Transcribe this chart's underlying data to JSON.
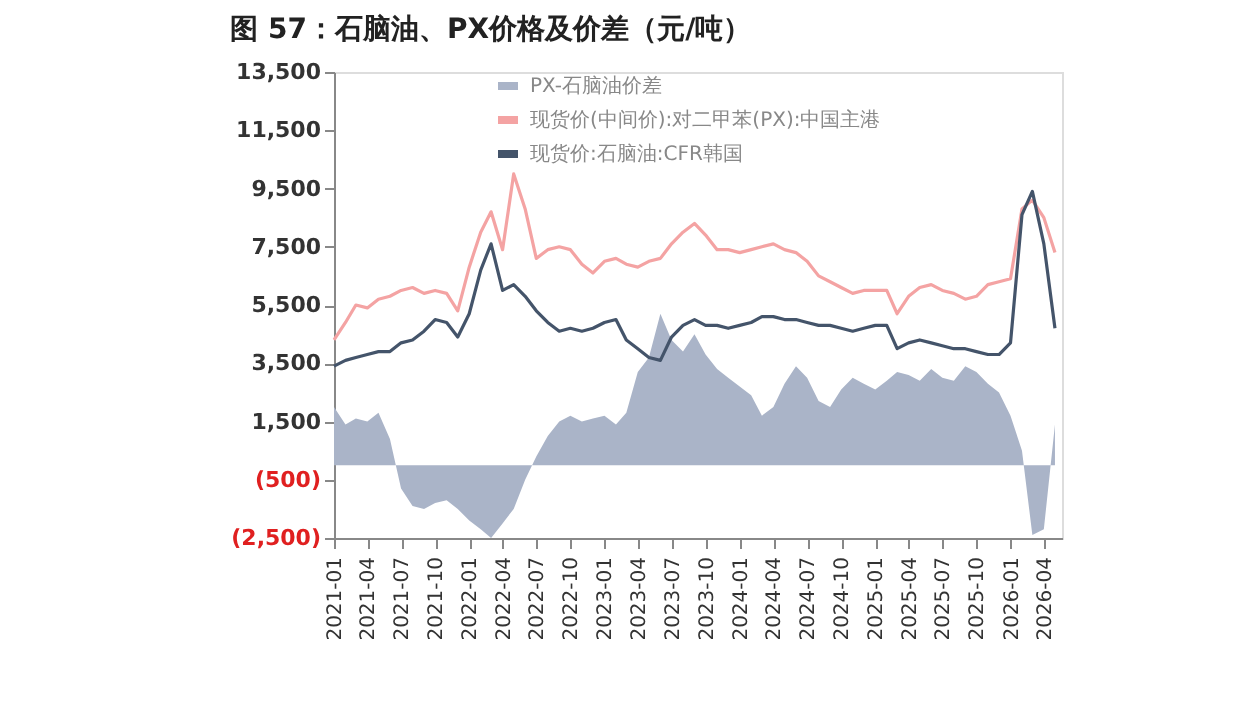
{
  "chart_data": {
    "type": "area",
    "title": "图 57：石脑油、PX价格及价差（元/吨）",
    "x": [
      "2021-01",
      "2021-02",
      "2021-03",
      "2021-04",
      "2021-05",
      "2021-06",
      "2021-07",
      "2021-08",
      "2021-09",
      "2021-10",
      "2021-11",
      "2021-12",
      "2022-01",
      "2022-02",
      "2022-03",
      "2022-04",
      "2022-05",
      "2022-06",
      "2022-07",
      "2022-08",
      "2022-09",
      "2022-10",
      "2022-11",
      "2022-12",
      "2023-01",
      "2023-02",
      "2023-03",
      "2023-04",
      "2023-05",
      "2023-06",
      "2023-07",
      "2023-08",
      "2023-09",
      "2023-10",
      "2023-11",
      "2023-12",
      "2024-01",
      "2024-02",
      "2024-03",
      "2024-04",
      "2024-05",
      "2024-06",
      "2024-07",
      "2024-08",
      "2024-09",
      "2024-10",
      "2024-11",
      "2024-12",
      "2025-01",
      "2025-02",
      "2025-03",
      "2025-04",
      "2025-05",
      "2025-06",
      "2025-07",
      "2025-08",
      "2025-09",
      "2025-10",
      "2025-11",
      "2025-12",
      "2026-01",
      "2026-02",
      "2026-03",
      "2026-04",
      "2026-05"
    ],
    "series": [
      {
        "name": "PX-石脑油价差",
        "color": "#aab4c8",
        "values": [
          2000,
          1400,
          1600,
          1500,
          1800,
          900,
          -800,
          -1400,
          -1500,
          -1300,
          -1200,
          -1500,
          -1900,
          -2200,
          -2500,
          -2000,
          -1500,
          -500,
          300,
          1000,
          1500,
          1700,
          1500,
          1600,
          1700,
          1400,
          1800,
          3200,
          3700,
          5200,
          4300,
          3900,
          4500,
          3800,
          3300,
          3000,
          2700,
          2400,
          1700,
          2000,
          2800,
          3400,
          3000,
          2200,
          2000,
          2600,
          3000,
          2800,
          2600,
          2900,
          3200,
          3100,
          2900,
          3300,
          3000,
          2900,
          3400,
          3200,
          2800,
          2500,
          1700,
          500,
          -2400,
          -2200,
          1400
        ]
      },
      {
        "name": "现货价(中间价):对二甲苯(PX):中国主港",
        "type": "line",
        "color": "#f4a3a3",
        "values": [
          4300,
          4900,
          5500,
          5400,
          5700,
          5800,
          6000,
          6100,
          5900,
          6000,
          5900,
          5300,
          6800,
          8000,
          8700,
          7400,
          10000,
          8800,
          7100,
          7400,
          7500,
          7400,
          6900,
          6600,
          7000,
          7100,
          6900,
          6800,
          7000,
          7100,
          7600,
          8000,
          8300,
          7900,
          7400,
          7400,
          7300,
          7400,
          7500,
          7600,
          7400,
          7300,
          7000,
          6500,
          6300,
          6100,
          5900,
          6000,
          6000,
          6000,
          5200,
          5800,
          6100,
          6200,
          6000,
          5900,
          5700,
          5800,
          6200,
          6300,
          6400,
          8800,
          9100,
          8500,
          7300
        ]
      },
      {
        "name": "现货价:石脑油:CFR韩国",
        "type": "line",
        "color": "#44546a",
        "values": [
          3400,
          3600,
          3700,
          3800,
          3900,
          3900,
          4200,
          4300,
          4600,
          5000,
          4900,
          4400,
          5200,
          6700,
          7600,
          6000,
          6200,
          5800,
          5300,
          4900,
          4600,
          4700,
          4600,
          4700,
          4900,
          5000,
          4300,
          4000,
          3700,
          3600,
          4400,
          4800,
          5000,
          4800,
          4800,
          4700,
          4800,
          4900,
          5100,
          5100,
          5000,
          5000,
          4900,
          4800,
          4800,
          4700,
          4600,
          4700,
          4800,
          4800,
          4000,
          4200,
          4300,
          4200,
          4100,
          4000,
          4000,
          3900,
          3800,
          3800,
          4200,
          8600,
          9400,
          7600,
          4700
        ]
      }
    ],
    "xlim": [
      "2021-01",
      "2026-05-20"
    ],
    "xticks": [
      "2021-01",
      "2021-04",
      "2021-07",
      "2021-10",
      "2022-01",
      "2022-04",
      "2022-07",
      "2022-10",
      "2023-01",
      "2023-04",
      "2023-07",
      "2023-10",
      "2024-01",
      "2024-04",
      "2024-07",
      "2024-10",
      "2025-01",
      "2025-04",
      "2025-07",
      "2025-10",
      "2026-01",
      "2026-04"
    ],
    "ylim": [
      -2500,
      13500
    ],
    "yticks": [
      {
        "value": -2500,
        "label": "(2,500)"
      },
      {
        "value": -500,
        "label": "(500)"
      },
      {
        "value": 1500,
        "label": "1,500"
      },
      {
        "value": 3500,
        "label": "3,500"
      },
      {
        "value": 5500,
        "label": "5,500"
      },
      {
        "value": 7500,
        "label": "7,500"
      },
      {
        "value": 9500,
        "label": "9,500"
      },
      {
        "value": 11500,
        "label": "11,500"
      },
      {
        "value": 13500,
        "label": "13,500"
      }
    ],
    "grid": false,
    "legend": "top left"
  }
}
